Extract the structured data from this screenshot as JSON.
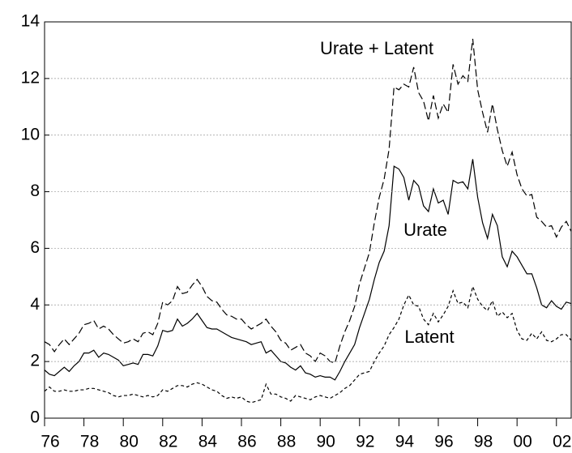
{
  "chart_data": {
    "type": "line",
    "x": [
      1976,
      1976.25,
      1976.5,
      1976.75,
      1977,
      1977.25,
      1977.5,
      1977.75,
      1978,
      1978.25,
      1978.5,
      1978.75,
      1979,
      1979.25,
      1979.5,
      1979.75,
      1980,
      1980.25,
      1980.5,
      1980.75,
      1981,
      1981.25,
      1981.5,
      1981.75,
      1982,
      1982.25,
      1982.5,
      1982.75,
      1983,
      1983.25,
      1983.5,
      1983.75,
      1984,
      1984.25,
      1984.5,
      1984.75,
      1985,
      1985.25,
      1985.5,
      1985.75,
      1986,
      1986.25,
      1986.5,
      1986.75,
      1987,
      1987.25,
      1987.5,
      1987.75,
      1988,
      1988.25,
      1988.5,
      1988.75,
      1989,
      1989.25,
      1989.5,
      1989.75,
      1990,
      1990.25,
      1990.5,
      1990.75,
      1991,
      1991.25,
      1991.5,
      1991.75,
      1992,
      1992.25,
      1992.5,
      1992.75,
      1993,
      1993.25,
      1993.5,
      1993.75,
      1994,
      1994.25,
      1994.5,
      1994.75,
      1995,
      1995.25,
      1995.5,
      1995.75,
      1996,
      1996.25,
      1996.5,
      1996.75,
      1997,
      1997.25,
      1997.5,
      1997.75,
      1998,
      1998.25,
      1998.5,
      1998.75,
      1999,
      1999.25,
      1999.5,
      1999.75,
      2000,
      2000.25,
      2000.5,
      2000.75,
      2001,
      2001.25,
      2001.5,
      2001.75,
      2002,
      2002.25,
      2002.5,
      2002.75
    ],
    "series": [
      {
        "name": "Urate + Latent",
        "color": "#000000",
        "dash": "long",
        "values": [
          2.7,
          2.6,
          2.35,
          2.6,
          2.8,
          2.6,
          2.8,
          3.0,
          3.3,
          3.35,
          3.45,
          3.15,
          3.25,
          3.15,
          2.95,
          2.8,
          2.65,
          2.7,
          2.8,
          2.7,
          3.0,
          3.05,
          2.95,
          3.35,
          4.1,
          4.0,
          4.15,
          4.65,
          4.4,
          4.45,
          4.7,
          4.9,
          4.65,
          4.3,
          4.15,
          4.1,
          3.85,
          3.65,
          3.6,
          3.5,
          3.5,
          3.3,
          3.15,
          3.25,
          3.35,
          3.5,
          3.25,
          3.05,
          2.75,
          2.65,
          2.4,
          2.5,
          2.6,
          2.3,
          2.2,
          2.0,
          2.3,
          2.2,
          2.0,
          1.95,
          2.55,
          3.05,
          3.45,
          3.95,
          4.75,
          5.3,
          5.85,
          6.9,
          7.8,
          8.45,
          9.5,
          11.7,
          11.6,
          11.8,
          11.7,
          12.4,
          11.5,
          11.2,
          10.5,
          11.4,
          10.6,
          11.1,
          10.8,
          12.5,
          11.8,
          12.1,
          11.9,
          13.4,
          11.6,
          10.8,
          10.1,
          11.1,
          10.2,
          9.45,
          8.9,
          9.4,
          8.6,
          8.1,
          7.85,
          7.9,
          7.1,
          6.95,
          6.75,
          6.8,
          6.4,
          6.75,
          6.95,
          6.6
        ]
      },
      {
        "name": "Urate",
        "color": "#000000",
        "dash": "solid",
        "values": [
          1.7,
          1.55,
          1.5,
          1.65,
          1.8,
          1.65,
          1.85,
          2.0,
          2.3,
          2.3,
          2.4,
          2.15,
          2.3,
          2.25,
          2.15,
          2.05,
          1.85,
          1.9,
          1.95,
          1.9,
          2.25,
          2.25,
          2.2,
          2.55,
          3.1,
          3.05,
          3.1,
          3.5,
          3.25,
          3.35,
          3.5,
          3.7,
          3.45,
          3.2,
          3.15,
          3.15,
          3.05,
          2.95,
          2.85,
          2.8,
          2.75,
          2.7,
          2.6,
          2.65,
          2.7,
          2.3,
          2.4,
          2.2,
          2.0,
          1.95,
          1.8,
          1.7,
          1.85,
          1.6,
          1.55,
          1.45,
          1.5,
          1.45,
          1.45,
          1.35,
          1.65,
          2.0,
          2.3,
          2.6,
          3.2,
          3.7,
          4.2,
          4.9,
          5.5,
          5.9,
          6.8,
          8.9,
          8.8,
          8.5,
          7.7,
          8.4,
          8.2,
          7.5,
          7.3,
          8.1,
          7.6,
          7.7,
          7.2,
          8.4,
          8.3,
          8.35,
          8.1,
          9.15,
          7.8,
          6.9,
          6.35,
          7.2,
          6.8,
          5.7,
          5.35,
          5.9,
          5.7,
          5.4,
          5.1,
          5.1,
          4.6,
          4.0,
          3.9,
          4.15,
          3.95,
          3.85,
          4.1,
          4.05
        ]
      },
      {
        "name": "Latent",
        "color": "#000000",
        "dash": "short",
        "values": [
          0.95,
          1.1,
          0.95,
          0.95,
          1.0,
          0.95,
          0.95,
          1.0,
          1.0,
          1.05,
          1.05,
          1.0,
          0.95,
          0.9,
          0.8,
          0.75,
          0.8,
          0.8,
          0.85,
          0.8,
          0.75,
          0.8,
          0.75,
          0.8,
          1.0,
          0.95,
          1.05,
          1.15,
          1.15,
          1.1,
          1.2,
          1.25,
          1.2,
          1.1,
          1.0,
          0.95,
          0.8,
          0.7,
          0.75,
          0.7,
          0.75,
          0.6,
          0.55,
          0.6,
          0.65,
          1.2,
          0.85,
          0.85,
          0.75,
          0.7,
          0.6,
          0.8,
          0.75,
          0.7,
          0.65,
          0.75,
          0.8,
          0.75,
          0.7,
          0.8,
          0.9,
          1.05,
          1.15,
          1.35,
          1.55,
          1.6,
          1.65,
          2.0,
          2.3,
          2.55,
          2.95,
          3.2,
          3.5,
          4.0,
          4.35,
          4.0,
          3.95,
          3.5,
          3.3,
          3.7,
          3.4,
          3.65,
          3.95,
          4.5,
          4.05,
          4.1,
          3.9,
          4.65,
          4.2,
          3.95,
          3.8,
          4.15,
          3.6,
          3.75,
          3.55,
          3.7,
          3.1,
          2.8,
          2.75,
          3.0,
          2.8,
          3.05,
          2.75,
          2.7,
          2.8,
          2.95,
          2.95,
          2.75
        ]
      }
    ],
    "xlim": [
      1976,
      2002.75
    ],
    "xticks": [
      {
        "value": 1976,
        "label": "76"
      },
      {
        "value": 1978,
        "label": "78"
      },
      {
        "value": 1980,
        "label": "80"
      },
      {
        "value": 1982,
        "label": "82"
      },
      {
        "value": 1984,
        "label": "84"
      },
      {
        "value": 1986,
        "label": "86"
      },
      {
        "value": 1988,
        "label": "88"
      },
      {
        "value": 1990,
        "label": "90"
      },
      {
        "value": 1992,
        "label": "92"
      },
      {
        "value": 1994,
        "label": "94"
      },
      {
        "value": 1996,
        "label": "96"
      },
      {
        "value": 1998,
        "label": "98"
      },
      {
        "value": 2000,
        "label": "00"
      },
      {
        "value": 2002,
        "label": "02"
      }
    ],
    "ylim": [
      0,
      14
    ],
    "yticks": [
      0,
      2,
      4,
      6,
      8,
      10,
      12,
      14
    ],
    "grid": true
  }
}
